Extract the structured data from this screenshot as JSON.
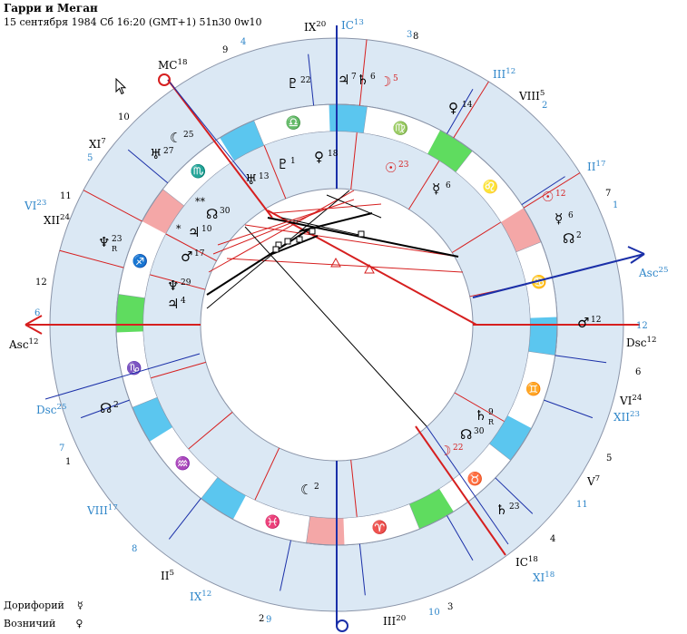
{
  "header": {
    "title": "Гарри и Меган",
    "subtitle": "15 сентября 1984  Сб  16:20 (GMT+1) 51n30  0w10"
  },
  "legend": [
    {
      "label": "Дорифорий",
      "symbol": "☿"
    },
    {
      "label": "Возничий",
      "symbol": "♀"
    }
  ],
  "colors": {
    "ring_fill": "#dbe8f4",
    "fire": "#f4a7a7",
    "earth": "#5fdc5f",
    "air": "#5bc6ef",
    "water": "#5bc6ef",
    "red": "#d61f1f",
    "blue": "#1a2fa8",
    "house_blue": "#2f86c9"
  },
  "chart": {
    "zodiac_signs": [
      {
        "glyph": "♈",
        "color": "fire"
      },
      {
        "glyph": "♉",
        "color": "earth"
      },
      {
        "glyph": "♊",
        "color": "air"
      },
      {
        "glyph": "♋",
        "color": "water"
      },
      {
        "glyph": "♌",
        "color": "fire"
      },
      {
        "glyph": "♍",
        "color": "earth"
      },
      {
        "glyph": "♎",
        "color": "air"
      },
      {
        "glyph": "♏",
        "color": "water"
      },
      {
        "glyph": "♐",
        "color": "fire"
      },
      {
        "glyph": "♑",
        "color": "earth"
      },
      {
        "glyph": "♒",
        "color": "air"
      },
      {
        "glyph": "♓",
        "color": "water"
      }
    ],
    "axis_labels": [
      {
        "name": "asc-left-label",
        "text": "Asc",
        "sup": "12",
        "color": "#000000"
      },
      {
        "name": "asc-right-label",
        "text": "Asc",
        "sup": "25",
        "color": "#2f86c9"
      },
      {
        "name": "dsc-right-label",
        "text": "Dsc",
        "sup": "12",
        "color": "#000000"
      },
      {
        "name": "dsc-left-label",
        "text": "Dsc",
        "sup": "25",
        "color": "#2f86c9"
      },
      {
        "name": "mc-label",
        "text": "MC",
        "sup": "18",
        "color": "#000000"
      },
      {
        "name": "ic-top-label",
        "text": "IC",
        "sup": "13",
        "color": "#2f86c9"
      },
      {
        "name": "ic-bottom-label",
        "text": "IC",
        "sup": "18",
        "color": "#000000"
      }
    ],
    "house_cusp_labels": [
      {
        "text": "IX",
        "sup": "20",
        "color": "#000000"
      },
      {
        "text": "III",
        "sup": "12",
        "color": "#2f86c9"
      },
      {
        "text": "VIII",
        "sup": "5",
        "color": "#000000"
      },
      {
        "text": "II",
        "sup": "17",
        "color": "#2f86c9"
      },
      {
        "text": "XI",
        "sup": "7",
        "color": "#000000"
      },
      {
        "text": "VI",
        "sup": "23",
        "color": "#2f86c9"
      },
      {
        "text": "XII",
        "sup": "24",
        "color": "#000000"
      },
      {
        "text": "VI",
        "sup": "24",
        "color": "#000000"
      },
      {
        "text": "XII",
        "sup": "23",
        "color": "#2f86c9"
      },
      {
        "text": "V",
        "sup": "7",
        "color": "#000000"
      },
      {
        "text": "XI",
        "sup": "18",
        "color": "#2f86c9"
      },
      {
        "text": "VIII",
        "sup": "17",
        "color": "#2f86c9"
      },
      {
        "text": "II",
        "sup": "5",
        "color": "#000000"
      },
      {
        "text": "IX",
        "sup": "12",
        "color": "#2f86c9"
      },
      {
        "text": "III",
        "sup": "20",
        "color": "#000000"
      }
    ],
    "house_numbers_outer": [
      {
        "text": "9",
        "color": "#000000"
      },
      {
        "text": "4",
        "color": "#2f86c9"
      },
      {
        "text": "3",
        "color": "#2f86c9"
      },
      {
        "text": "8",
        "color": "#000000"
      },
      {
        "text": "10",
        "color": "#000000"
      },
      {
        "text": "5",
        "color": "#2f86c9"
      },
      {
        "text": "11",
        "color": "#000000"
      },
      {
        "text": "12",
        "color": "#000000"
      },
      {
        "text": "6",
        "color": "#2f86c9"
      },
      {
        "text": "2",
        "color": "#2f86c9"
      },
      {
        "text": "7",
        "color": "#000000"
      },
      {
        "text": "1",
        "color": "#2f86c9"
      },
      {
        "text": "12",
        "color": "#2f86c9"
      },
      {
        "text": "6",
        "color": "#000000"
      },
      {
        "text": "5",
        "color": "#000000"
      },
      {
        "text": "11",
        "color": "#2f86c9"
      },
      {
        "text": "7",
        "color": "#2f86c9"
      },
      {
        "text": "1",
        "color": "#000000"
      },
      {
        "text": "4",
        "color": "#000000"
      },
      {
        "text": "8",
        "color": "#2f86c9"
      },
      {
        "text": "2",
        "color": "#000000"
      },
      {
        "text": "9",
        "color": "#2f86c9"
      },
      {
        "text": "10",
        "color": "#2f86c9"
      },
      {
        "text": "3",
        "color": "#000000"
      }
    ],
    "outer_planets": [
      {
        "glyph": "♇",
        "deg": "22"
      },
      {
        "glyph": "♃",
        "deg": "7"
      },
      {
        "glyph": "♄",
        "deg": "6"
      },
      {
        "glyph": "☽",
        "deg": "5",
        "color": "#d61f1f"
      },
      {
        "glyph": "♀",
        "deg": "14"
      },
      {
        "glyph": "☾",
        "deg": "25"
      },
      {
        "glyph": "♅",
        "deg": "27"
      },
      {
        "glyph": "♆",
        "deg": "23",
        "retro": "R"
      },
      {
        "glyph": "♂",
        "deg": "12"
      },
      {
        "glyph": "☊",
        "deg": "2"
      },
      {
        "glyph": "♄",
        "deg": "9",
        "retro": "R"
      },
      {
        "glyph": "☊",
        "deg": "30"
      },
      {
        "glyph": "☽",
        "deg": "22",
        "color": "#d61f1f"
      },
      {
        "glyph": "♄",
        "deg": "23"
      },
      {
        "glyph": "☾",
        "deg": "2"
      }
    ],
    "inner_planets": [
      {
        "glyph": "♅",
        "deg": "13"
      },
      {
        "glyph": "♇",
        "deg": "1"
      },
      {
        "glyph": "♀",
        "deg": "18"
      },
      {
        "glyph": "☉",
        "deg": "23",
        "color": "#d61f1f"
      },
      {
        "glyph": "☿",
        "deg": "6"
      },
      {
        "glyph": "☉",
        "deg": "12",
        "color": "#d61f1f"
      },
      {
        "glyph": "☿",
        "deg": "6"
      },
      {
        "glyph": "☊",
        "deg": "2"
      },
      {
        "glyph": "☊",
        "deg": "30"
      },
      {
        "glyph": "♃",
        "deg": "10"
      },
      {
        "glyph": "♂",
        "deg": "17"
      },
      {
        "glyph": "♆",
        "deg": "29"
      },
      {
        "glyph": "♃",
        "deg": "4"
      }
    ],
    "markers": [
      "**",
      "*"
    ]
  }
}
